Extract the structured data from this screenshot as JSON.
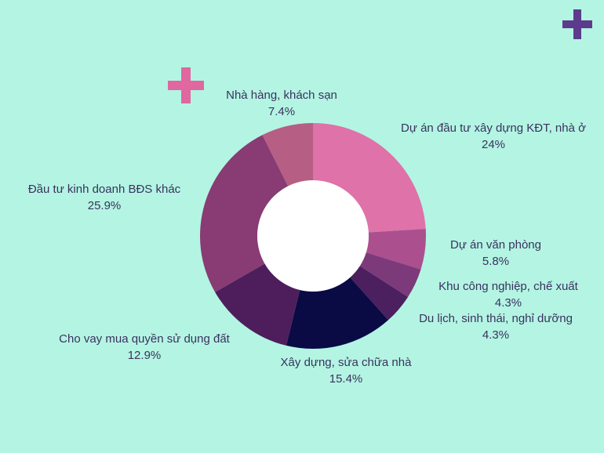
{
  "colors": {
    "background": "#b3f5e2",
    "label_text": "#3b3160",
    "plus_pink": "#e0679f",
    "plus_purple": "#5c3b8c"
  },
  "decorations": [
    "plus-icon-pink",
    "plus-icon-purple"
  ],
  "chart_data": {
    "type": "pie",
    "style": "donut",
    "title": "",
    "series": [
      {
        "name": "Dự án đầu tư xây dựng KĐT, nhà ở",
        "value": 24,
        "value_label": "24%",
        "color": "#df72a8"
      },
      {
        "name": "Dự án văn phòng",
        "value": 5.8,
        "value_label": "5.8%",
        "color": "#ac4f8f"
      },
      {
        "name": "Khu công nghiệp, chế xuất",
        "value": 4.3,
        "value_label": "4.3%",
        "color": "#7d3a7a"
      },
      {
        "name": "Du lịch, sinh thái, nghỉ dưỡng",
        "value": 4.3,
        "value_label": "4.3%",
        "color": "#4c1f5f"
      },
      {
        "name": "Xây dựng, sửa chữa nhà",
        "value": 15.4,
        "value_label": "15.4%",
        "color": "#0a0a45"
      },
      {
        "name": "Cho vay mua quyền sử dụng đất",
        "value": 12.9,
        "value_label": "12.9%",
        "color": "#4e1e5c"
      },
      {
        "name": "Đầu tư kinh doanh BĐS khác",
        "value": 25.9,
        "value_label": "25.9%",
        "color": "#893b73"
      },
      {
        "name": "Nhà hàng, khách sạn",
        "value": 7.4,
        "value_label": "7.4%",
        "color": "#b65e84"
      }
    ]
  }
}
